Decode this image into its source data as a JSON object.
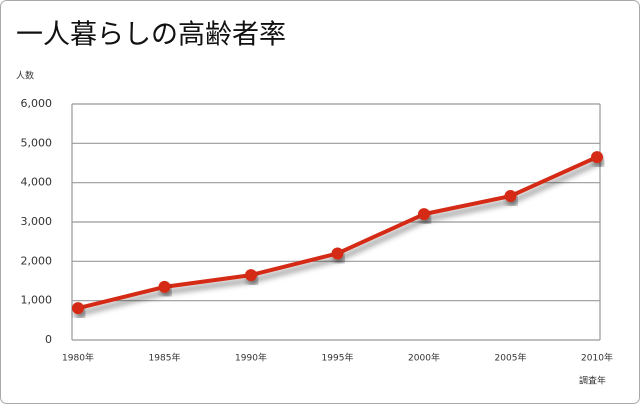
{
  "chart_data": {
    "type": "line",
    "title": "一人暮らしの高齢者率",
    "y_label": "人数",
    "x_label": "調査年",
    "categories": [
      "1980年",
      "1985年",
      "1990年",
      "1995年",
      "2000年",
      "2005年",
      "2010年"
    ],
    "series": [
      {
        "name": "人数",
        "color": "#d42a12",
        "values": [
          810,
          1350,
          1650,
          2200,
          3200,
          3660,
          4650
        ]
      }
    ],
    "ylim": [
      0,
      6000
    ],
    "yticks": [
      0,
      {
        "value": 1000,
        "label": "1,000"
      },
      {
        "value": 2000,
        "label": "2,000"
      },
      {
        "value": 3000,
        "label": "3,000"
      },
      {
        "value": 4000,
        "label": "4,000"
      },
      {
        "value": 5000,
        "label": "5,000"
      },
      {
        "value": 6000,
        "label": "6,000"
      }
    ],
    "grid": true
  }
}
